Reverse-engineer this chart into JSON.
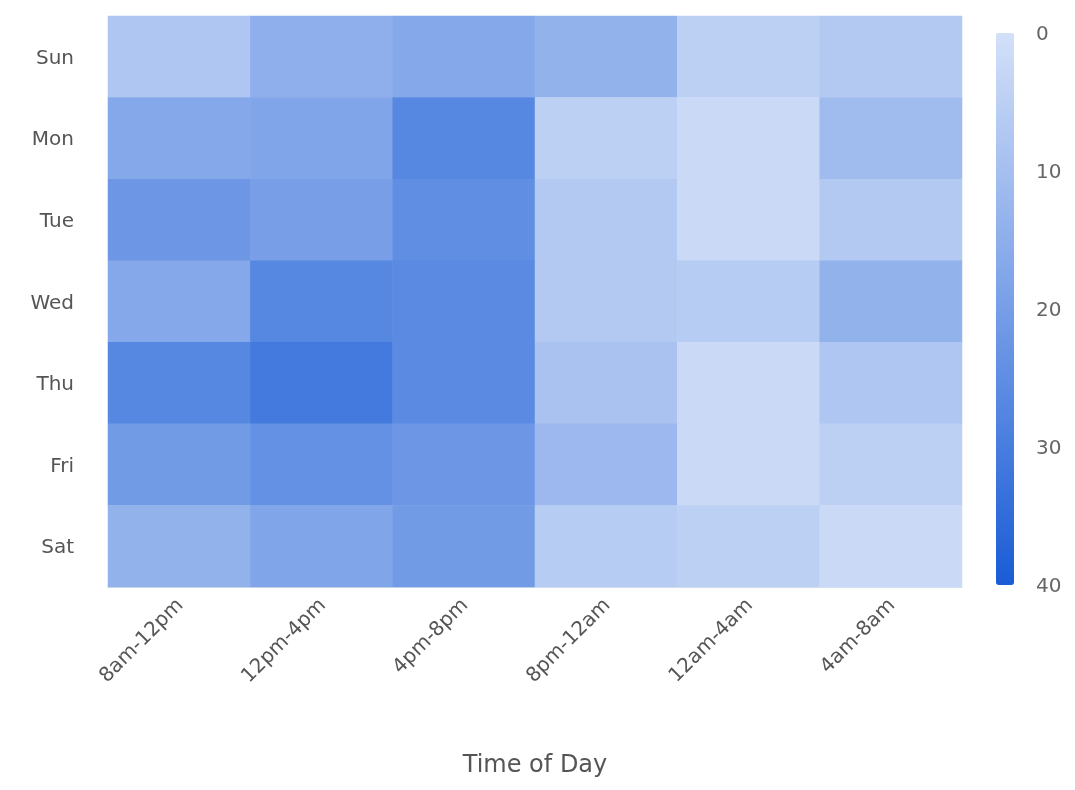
{
  "chart_data": {
    "type": "heatmap",
    "xlabel": "Time of Day",
    "categories": [
      "8am-12pm",
      "12pm-4pm",
      "4pm-8pm",
      "8pm-12am",
      "12am-4am",
      "4am-8am"
    ],
    "y_categories": [
      "Sun",
      "Mon",
      "Tue",
      "Wed",
      "Thu",
      "Fri",
      "Sat"
    ],
    "cells": [
      [
        8,
        15,
        17,
        14,
        5,
        7
      ],
      [
        17,
        18,
        27,
        5,
        2,
        11
      ],
      [
        22,
        20,
        25,
        7,
        2,
        7
      ],
      [
        17,
        27,
        26,
        7,
        6,
        14
      ],
      [
        27,
        31,
        26,
        9,
        2,
        8
      ],
      [
        21,
        24,
        22,
        12,
        2,
        5
      ],
      [
        14,
        18,
        21,
        6,
        5,
        2
      ]
    ],
    "clim": [
      0,
      40
    ],
    "cticks": [
      0,
      10,
      20,
      30,
      40
    ],
    "colors": [
      "#d3e0f8",
      "#1a5cd6"
    ]
  }
}
